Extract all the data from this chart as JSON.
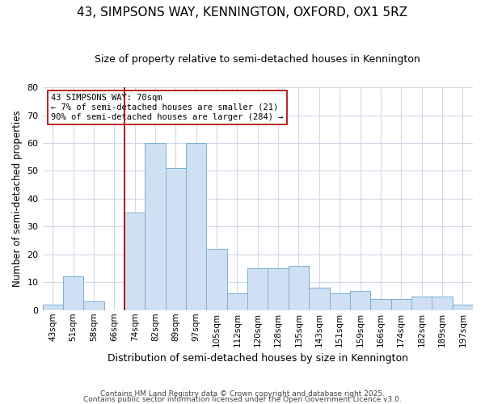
{
  "title": "43, SIMPSONS WAY, KENNINGTON, OXFORD, OX1 5RZ",
  "subtitle": "Size of property relative to semi-detached houses in Kennington",
  "xlabel": "Distribution of semi-detached houses by size in Kennington",
  "ylabel": "Number of semi-detached properties",
  "categories": [
    "43sqm",
    "51sqm",
    "58sqm",
    "66sqm",
    "74sqm",
    "82sqm",
    "89sqm",
    "97sqm",
    "105sqm",
    "112sqm",
    "120sqm",
    "128sqm",
    "135sqm",
    "143sqm",
    "151sqm",
    "159sqm",
    "166sqm",
    "174sqm",
    "182sqm",
    "189sqm",
    "197sqm"
  ],
  "values": [
    2,
    12,
    3,
    0,
    35,
    60,
    51,
    60,
    22,
    6,
    15,
    15,
    16,
    8,
    6,
    7,
    4,
    4,
    5,
    5,
    2
  ],
  "bar_color": "#cfe0f3",
  "bar_edge_color": "#7ab0d8",
  "highlight_line_color": "#aa0000",
  "annotation_text": "43 SIMPSONS WAY: 70sqm\n← 7% of semi-detached houses are smaller (21)\n90% of semi-detached houses are larger (284) →",
  "annotation_box_color": "#ffffff",
  "annotation_box_edge_color": "#aa0000",
  "ylim": [
    0,
    80
  ],
  "yticks": [
    0,
    10,
    20,
    30,
    40,
    50,
    60,
    70,
    80
  ],
  "background_color": "#ffffff",
  "plot_background_color": "#ffffff",
  "grid_color": "#d0d8e8",
  "footer1": "Contains HM Land Registry data © Crown copyright and database right 2025.",
  "footer2": "Contains public sector information licensed under the Open Government Licence v3.0."
}
